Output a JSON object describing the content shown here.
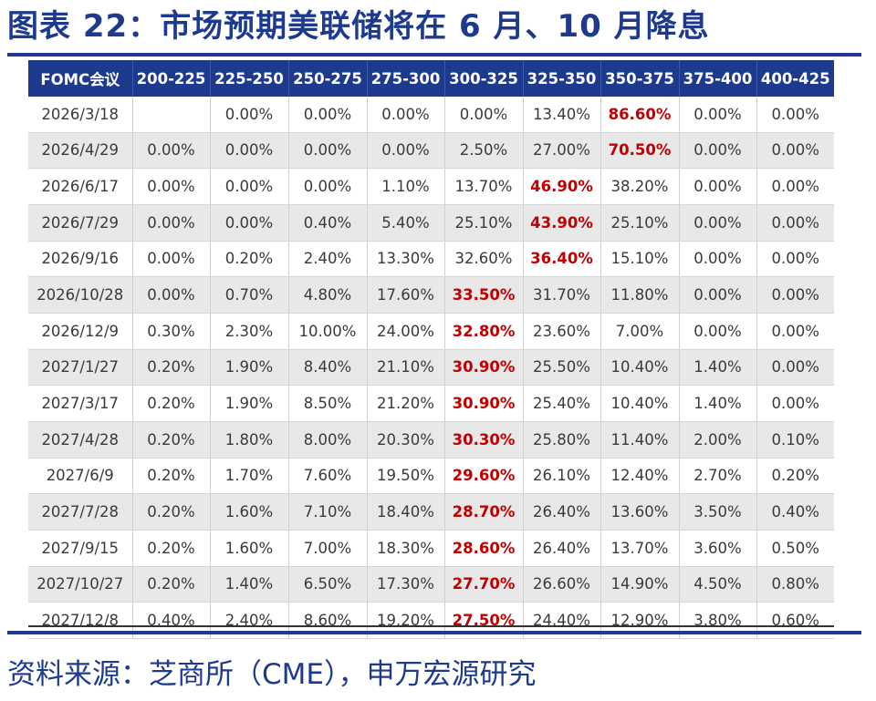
{
  "title": "图表 22：市场预期美联储将在 6 月、10 月降息",
  "source": "资料来源：芝商所（CME），申万宏源研究",
  "chart_data": {
    "type": "table",
    "columns": [
      "FOMC会议",
      "200-225",
      "225-250",
      "250-275",
      "275-300",
      "300-325",
      "325-350",
      "350-375",
      "375-400",
      "400-425"
    ],
    "rows": [
      [
        "2026/3/18",
        "",
        "0.00%",
        "0.00%",
        "0.00%",
        "0.00%",
        "13.40%",
        "86.60%",
        "0.00%",
        "0.00%"
      ],
      [
        "2026/4/29",
        "0.00%",
        "0.00%",
        "0.00%",
        "0.00%",
        "2.50%",
        "27.00%",
        "70.50%",
        "0.00%",
        "0.00%"
      ],
      [
        "2026/6/17",
        "0.00%",
        "0.00%",
        "0.00%",
        "1.10%",
        "13.70%",
        "46.90%",
        "38.20%",
        "0.00%",
        "0.00%"
      ],
      [
        "2026/7/29",
        "0.00%",
        "0.00%",
        "0.40%",
        "5.40%",
        "25.10%",
        "43.90%",
        "25.10%",
        "0.00%",
        "0.00%"
      ],
      [
        "2026/9/16",
        "0.00%",
        "0.20%",
        "2.40%",
        "13.30%",
        "32.60%",
        "36.40%",
        "15.10%",
        "0.00%",
        "0.00%"
      ],
      [
        "2026/10/28",
        "0.00%",
        "0.70%",
        "4.80%",
        "17.60%",
        "33.50%",
        "31.70%",
        "11.80%",
        "0.00%",
        "0.00%"
      ],
      [
        "2026/12/9",
        "0.30%",
        "2.30%",
        "10.00%",
        "24.00%",
        "32.80%",
        "23.60%",
        "7.00%",
        "0.00%",
        "0.00%"
      ],
      [
        "2027/1/27",
        "0.20%",
        "1.90%",
        "8.40%",
        "21.10%",
        "30.90%",
        "25.50%",
        "10.40%",
        "1.40%",
        "0.00%"
      ],
      [
        "2027/3/17",
        "0.20%",
        "1.90%",
        "8.50%",
        "21.20%",
        "30.90%",
        "25.40%",
        "10.40%",
        "1.40%",
        "0.00%"
      ],
      [
        "2027/4/28",
        "0.20%",
        "1.80%",
        "8.00%",
        "20.30%",
        "30.30%",
        "25.80%",
        "11.40%",
        "2.00%",
        "0.10%"
      ],
      [
        "2027/6/9",
        "0.20%",
        "1.70%",
        "7.60%",
        "19.50%",
        "29.60%",
        "26.10%",
        "12.40%",
        "2.70%",
        "0.20%"
      ],
      [
        "2027/7/28",
        "0.20%",
        "1.60%",
        "7.10%",
        "18.40%",
        "28.70%",
        "26.40%",
        "13.60%",
        "3.50%",
        "0.40%"
      ],
      [
        "2027/9/15",
        "0.20%",
        "1.60%",
        "7.00%",
        "18.30%",
        "28.60%",
        "26.40%",
        "13.70%",
        "3.60%",
        "0.50%"
      ],
      [
        "2027/10/27",
        "0.20%",
        "1.40%",
        "6.50%",
        "17.30%",
        "27.70%",
        "26.60%",
        "14.90%",
        "4.50%",
        "0.80%"
      ],
      [
        "2027/12/8",
        "0.40%",
        "2.40%",
        "8.60%",
        "19.20%",
        "27.50%",
        "24.40%",
        "12.90%",
        "3.80%",
        "0.60%"
      ]
    ],
    "highlight_col": [
      7,
      7,
      6,
      6,
      6,
      5,
      5,
      5,
      5,
      5,
      5,
      5,
      5,
      5,
      5
    ],
    "highlight_color": "#c00000",
    "header_bg": "#1d3a8f",
    "stripe_bg": "#e8e8e8"
  }
}
